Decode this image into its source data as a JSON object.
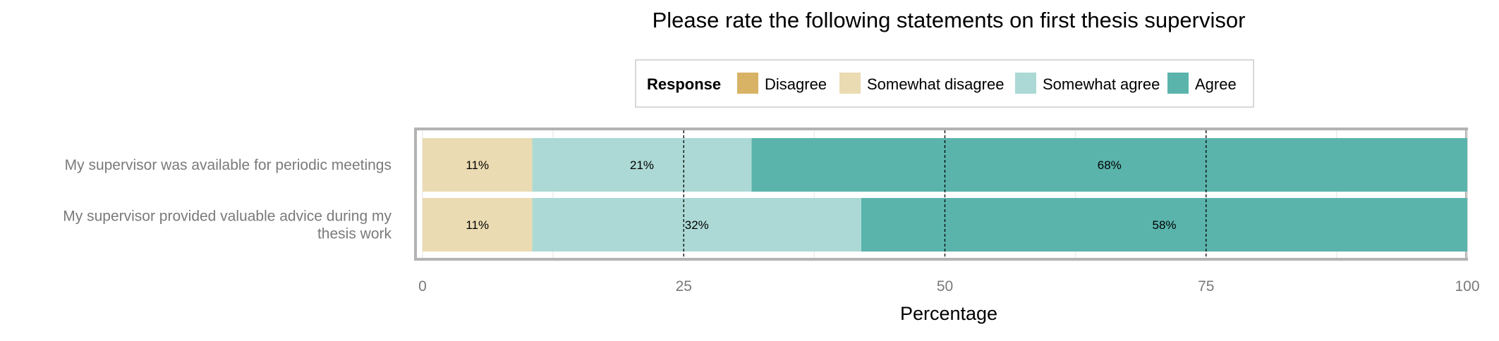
{
  "chart_data": {
    "type": "bar",
    "orientation": "horizontal",
    "stacked": true,
    "title": "Please rate the following statements on first thesis supervisor",
    "xlabel": "Percentage",
    "ylabel": "",
    "xlim": [
      0,
      100
    ],
    "x_ticks": [
      "0",
      "25",
      "50",
      "75",
      "100"
    ],
    "reference_lines": [
      25,
      50,
      75
    ],
    "grid": true,
    "legend": {
      "title": "Response",
      "position": "top",
      "items": [
        "Disagree",
        "Somewhat disagree",
        "Somewhat agree",
        "Agree"
      ]
    },
    "categories": [
      [
        "My supervisor was available for periodic meetings"
      ],
      [
        "My supervisor provided valuable advice during my",
        "thesis work"
      ]
    ],
    "series": [
      {
        "name": "Disagree",
        "color": "#d8b365",
        "values": [
          0,
          0
        ],
        "labels": [
          "",
          ""
        ]
      },
      {
        "name": "Somewhat disagree",
        "color": "#ebdbb2",
        "values": [
          10.5,
          10.5
        ],
        "labels": [
          "11%",
          "11%"
        ]
      },
      {
        "name": "Somewhat agree",
        "color": "#acd9d5",
        "values": [
          21,
          31.5
        ],
        "labels": [
          "21%",
          "32%"
        ]
      },
      {
        "name": "Agree",
        "color": "#5ab4ac",
        "values": [
          68.5,
          58
        ],
        "labels": [
          "68%",
          "58%"
        ]
      }
    ]
  }
}
